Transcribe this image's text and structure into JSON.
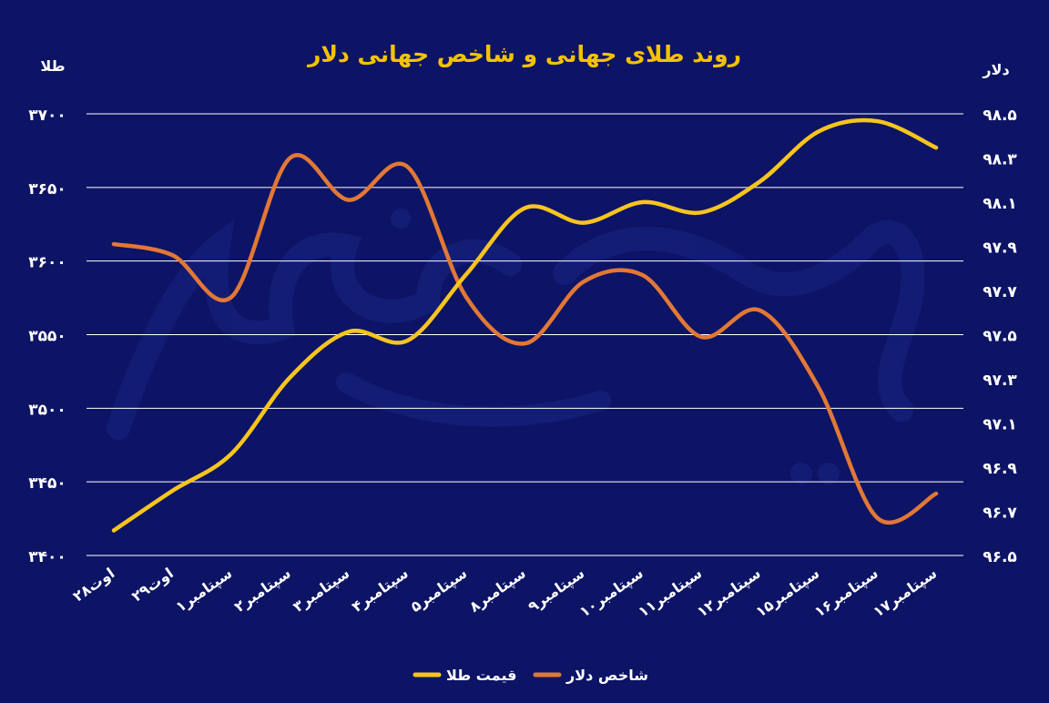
{
  "colors": {
    "background": "#0d1466",
    "grid": "#ffffff",
    "text": "#ffffff",
    "title": "#f5c200",
    "gold": "#f7c51e",
    "dollar": "#e27835"
  },
  "chart_data": {
    "type": "line",
    "title": "روند طلای جهانی و شاخص جهانی دلار",
    "left_axis_unit": "طلا",
    "right_axis_unit": "دلار",
    "categories": [
      "۲۸اوت",
      "۲۹اوت",
      "۱سپتامبر",
      "۲سپتامبر",
      "۳سپتامبر",
      "۴سپتامبر",
      "۵سپتامبر",
      "۸سپتامبر",
      "۹سپتامبر",
      "۱۰سپتامبر",
      "۱۱سپتامبر",
      "۱۲سپتامبر",
      "۱۵سپتامبر",
      "۱۶سپتامبر",
      "۱۷سپتامبر"
    ],
    "left_ticks": [
      "۳۷۰۰",
      "۳۶۵۰",
      "۳۶۰۰",
      "۳۵۵۰",
      "۳۵۰۰",
      "۳۴۵۰",
      "۳۴۰۰"
    ],
    "right_ticks": [
      "۹۸.۵",
      "۹۸.۳",
      "۹۸.۱",
      "۹۷.۹",
      "۹۷.۷",
      "۹۷.۵",
      "۹۷.۳",
      "۹۷.۱",
      "۹۶.۹",
      "۹۶.۷",
      "۹۶.۵"
    ],
    "left_ylim": [
      3400,
      3700
    ],
    "right_ylim": [
      96.5,
      98.5
    ],
    "grid": true,
    "legend_position": "bottom-center",
    "series": [
      {
        "name": "قیمت طلا",
        "axis": "left",
        "color": "#f7c51e",
        "values": [
          3417,
          3444,
          3469,
          3521,
          3552,
          3546,
          3591,
          3636,
          3626,
          3640,
          3633,
          3654,
          3688,
          3695,
          3677
        ]
      },
      {
        "name": "شاخص دلار",
        "axis": "right",
        "color": "#e27835",
        "values": [
          97.91,
          97.86,
          97.67,
          98.3,
          98.11,
          98.26,
          97.67,
          97.46,
          97.74,
          97.77,
          97.49,
          97.61,
          97.26,
          96.67,
          96.78
        ]
      }
    ]
  }
}
